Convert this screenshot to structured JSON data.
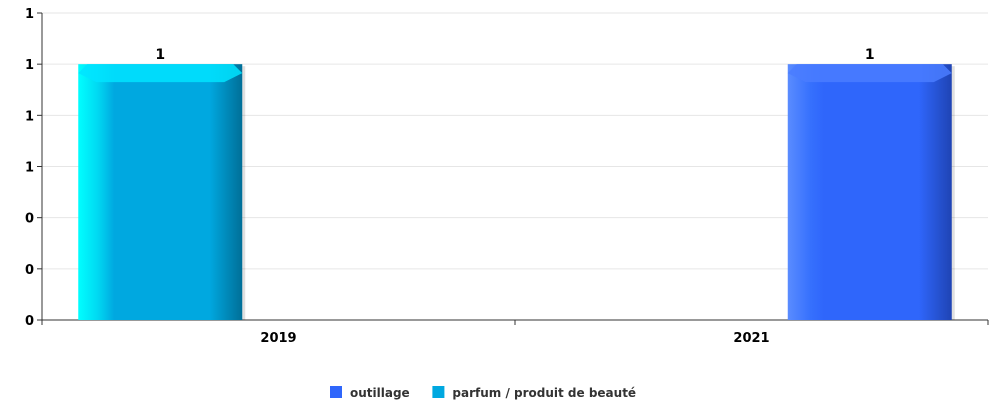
{
  "chart_data": {
    "type": "bar",
    "categories": [
      "2019",
      "2021"
    ],
    "series": [
      {
        "name": "outillage",
        "color": "#2f66fb",
        "values": [
          null,
          1
        ]
      },
      {
        "name": "parfum / produit de beauté",
        "color": "#00a8e0",
        "values": [
          1,
          null
        ]
      }
    ],
    "y_tick_labels": [
      "0",
      "0",
      "0",
      "1",
      "1",
      "1",
      "1"
    ],
    "ylim": [
      0,
      1.2
    ],
    "y_ticks": [
      0,
      0.2,
      0.4,
      0.6,
      0.8,
      1.0,
      1.2
    ],
    "data_labels": [
      "1",
      "1"
    ],
    "grid": true,
    "legend_position": "bottom-center",
    "title": "",
    "xlabel": "",
    "ylabel": ""
  }
}
